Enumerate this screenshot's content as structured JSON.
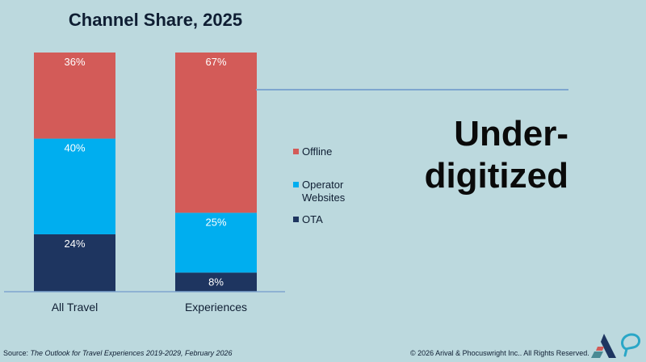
{
  "chart_data": {
    "type": "bar",
    "stacked": true,
    "title": "Channel Share, 2025",
    "categories": [
      "All Travel",
      "Experiences"
    ],
    "series": [
      {
        "name": "OTA",
        "color": "#1e3560",
        "values": [
          24,
          8
        ]
      },
      {
        "name": "Operator Websites",
        "color": "#00aeef",
        "values": [
          40,
          25
        ]
      },
      {
        "name": "Offline",
        "color": "#d35b58",
        "values": [
          36,
          67
        ]
      }
    ],
    "value_suffix": "%",
    "ylim": [
      0,
      100
    ],
    "grid": false,
    "legend": {
      "placement": "right",
      "entries": [
        {
          "label": "Offline",
          "color": "#d35b58"
        },
        {
          "label": "Operator Websites",
          "color": "#00aeef"
        },
        {
          "label": "OTA",
          "color": "#1e3560"
        }
      ]
    },
    "annotation": "Under-digitized"
  },
  "callout": {
    "line1": "Under-",
    "line2": "digitized",
    "line_color": "#7ea6cf"
  },
  "legend_text": {
    "offline": "Offline",
    "operator_line1": "Operator",
    "operator_line2": "Websites",
    "ota": "OTA"
  },
  "footer": {
    "source_prefix": "Source: ",
    "source_title": "The Outlook for Travel Experiences 2019-2029, February 2026",
    "copyright": "© 2026 Arival & Phocuswright Inc.. All Rights Reserved."
  },
  "logos": [
    "arival-logo",
    "phocuswright-logo"
  ]
}
